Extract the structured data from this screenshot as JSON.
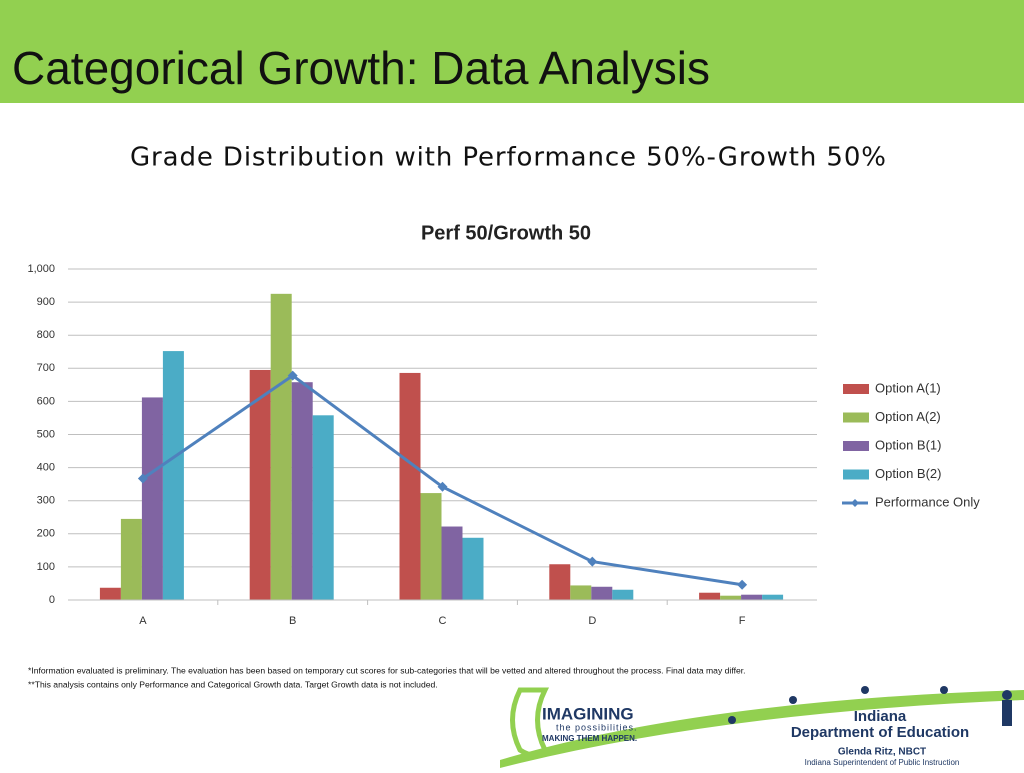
{
  "header": {
    "title": "Categorical Growth: Data Analysis"
  },
  "subtitle": "Grade Distribution with Performance 50%-Growth 50%",
  "chart_data": {
    "type": "bar",
    "title": "Perf 50/Growth 50",
    "categories": [
      "A",
      "B",
      "C",
      "D",
      "F"
    ],
    "series": [
      {
        "name": "Option A(1)",
        "color": "#c0504d",
        "values": [
          37,
          695,
          686,
          108,
          22
        ]
      },
      {
        "name": "Option A(2)",
        "color": "#9bbb59",
        "values": [
          245,
          925,
          323,
          44,
          13
        ]
      },
      {
        "name": "Option B(1)",
        "color": "#8064a2",
        "values": [
          612,
          658,
          222,
          40,
          16
        ]
      },
      {
        "name": "Option B(2)",
        "color": "#4bacc6",
        "values": [
          752,
          558,
          188,
          31,
          16
        ]
      },
      {
        "name": "Performance Only",
        "color": "#4f81bd",
        "type": "line",
        "values": [
          367,
          678,
          342,
          116,
          46
        ]
      }
    ],
    "ylim": [
      0,
      1000
    ],
    "yticks": [
      0,
      100,
      200,
      300,
      400,
      500,
      600,
      700,
      800,
      900,
      {
        "value": 1000,
        "label": "1,000"
      }
    ],
    "grid": true,
    "legend": "right"
  },
  "footnotes": [
    "*Information evaluated is preliminary. The evaluation has been based on temporary cut scores for sub-categories that will be vetted and altered throughout the process. Final data may differ.",
    "**This analysis contains only Performance and Categorical Growth data. Target Growth data is not included."
  ],
  "logo": {
    "imagining": "IMAGINING",
    "possibilities": "the possibilities.",
    "making": "MAKING THEM HAPPEN.",
    "state": "Indiana",
    "department": "Department of Education",
    "name": "Glenda Ritz, NBCT",
    "role": "Indiana Superintendent of Public Instruction"
  }
}
